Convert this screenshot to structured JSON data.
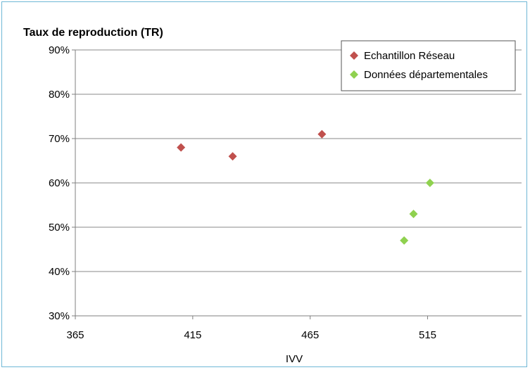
{
  "chart_data": {
    "type": "scatter",
    "title": "",
    "ylabel": "Taux de reproduction (TR)",
    "xlabel": "IVV",
    "xlim": [
      365,
      555
    ],
    "ylim": [
      0.3,
      0.9
    ],
    "x_ticks": [
      365,
      415,
      465,
      515
    ],
    "x_tick_labels": [
      "365",
      "415",
      "465",
      "515"
    ],
    "y_ticks": [
      0.3,
      0.4,
      0.5,
      0.6,
      0.7,
      0.8,
      0.9
    ],
    "y_tick_labels": [
      "30%",
      "40%",
      "50%",
      "60%",
      "70%",
      "80%",
      "90%"
    ],
    "grid": "horizontal",
    "legend_position": "top-right",
    "series": [
      {
        "name": "Echantillon Réseau",
        "color": "#c0504d",
        "marker": "diamond",
        "points": [
          {
            "x": 410,
            "y": 0.68
          },
          {
            "x": 432,
            "y": 0.66
          },
          {
            "x": 470,
            "y": 0.71
          }
        ]
      },
      {
        "name": "Données départementales",
        "color": "#8fd14f",
        "marker": "diamond",
        "points": [
          {
            "x": 505,
            "y": 0.47
          },
          {
            "x": 509,
            "y": 0.53
          },
          {
            "x": 516,
            "y": 0.6
          }
        ]
      }
    ]
  }
}
